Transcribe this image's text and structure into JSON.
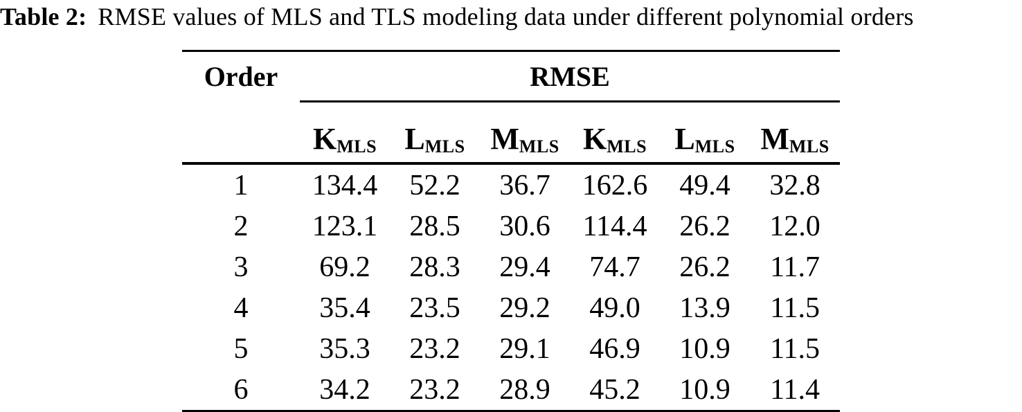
{
  "colors": {
    "text": "#000000",
    "background": "#ffffff",
    "rule": "#000000"
  },
  "caption": {
    "label": "Table 2:",
    "text": "RMSE values of MLS and TLS modeling data under different polynomial orders"
  },
  "table": {
    "corner_header": "Order",
    "group_header": "RMSE",
    "sub_headers": [
      {
        "base": "K",
        "sub": "MLS"
      },
      {
        "base": "L",
        "sub": "MLS"
      },
      {
        "base": "M",
        "sub": "MLS"
      },
      {
        "base": "K",
        "sub": "MLS"
      },
      {
        "base": "L",
        "sub": "MLS"
      },
      {
        "base": "M",
        "sub": "MLS"
      }
    ],
    "rows": [
      {
        "order": "1",
        "values": [
          "134.4",
          "52.2",
          "36.7",
          "162.6",
          "49.4",
          "32.8"
        ]
      },
      {
        "order": "2",
        "values": [
          "123.1",
          "28.5",
          "30.6",
          "114.4",
          "26.2",
          "12.0"
        ]
      },
      {
        "order": "3",
        "values": [
          "69.2",
          "28.3",
          "29.4",
          "74.7",
          "26.2",
          "11.7"
        ]
      },
      {
        "order": "4",
        "values": [
          "35.4",
          "23.5",
          "29.2",
          "49.0",
          "13.9",
          "11.5"
        ]
      },
      {
        "order": "5",
        "values": [
          "35.3",
          "23.2",
          "29.1",
          "46.9",
          "10.9",
          "11.5"
        ]
      },
      {
        "order": "6",
        "values": [
          "34.2",
          "23.2",
          "28.9",
          "45.2",
          "10.9",
          "11.4"
        ]
      }
    ]
  }
}
